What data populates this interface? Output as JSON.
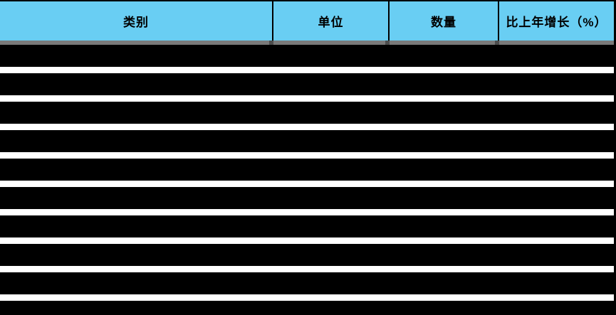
{
  "table": {
    "header": {
      "columns": [
        {
          "id": "category",
          "label": "类别"
        },
        {
          "id": "unit",
          "label": "单位"
        },
        {
          "id": "quantity",
          "label": "数量"
        },
        {
          "id": "yoy_growth",
          "label": "比上年增长（%）"
        }
      ]
    },
    "body": {
      "rows_redacted": true,
      "rows": [
        {
          "category": "",
          "unit": "",
          "quantity": "",
          "yoy_growth": ""
        },
        {
          "category": "",
          "unit": "",
          "quantity": "",
          "yoy_growth": ""
        },
        {
          "category": "",
          "unit": "",
          "quantity": "",
          "yoy_growth": ""
        },
        {
          "category": "",
          "unit": "",
          "quantity": "",
          "yoy_growth": ""
        },
        {
          "category": "",
          "unit": "",
          "quantity": "",
          "yoy_growth": ""
        },
        {
          "category": "",
          "unit": "",
          "quantity": "",
          "yoy_growth": ""
        },
        {
          "category": "",
          "unit": "",
          "quantity": "",
          "yoy_growth": ""
        },
        {
          "category": "",
          "unit": "",
          "quantity": "",
          "yoy_growth": ""
        },
        {
          "category": "",
          "unit": "",
          "quantity": "",
          "yoy_growth": ""
        },
        {
          "category": "",
          "unit": "",
          "quantity": "",
          "yoy_growth": ""
        }
      ]
    }
  },
  "colors": {
    "header_bg": "#69CEF3",
    "header_text": "#000000",
    "row_bg": "#000000",
    "row_gap": "#FFFFFF",
    "header_shadow": "#7A7A7A",
    "border": "#000000"
  }
}
